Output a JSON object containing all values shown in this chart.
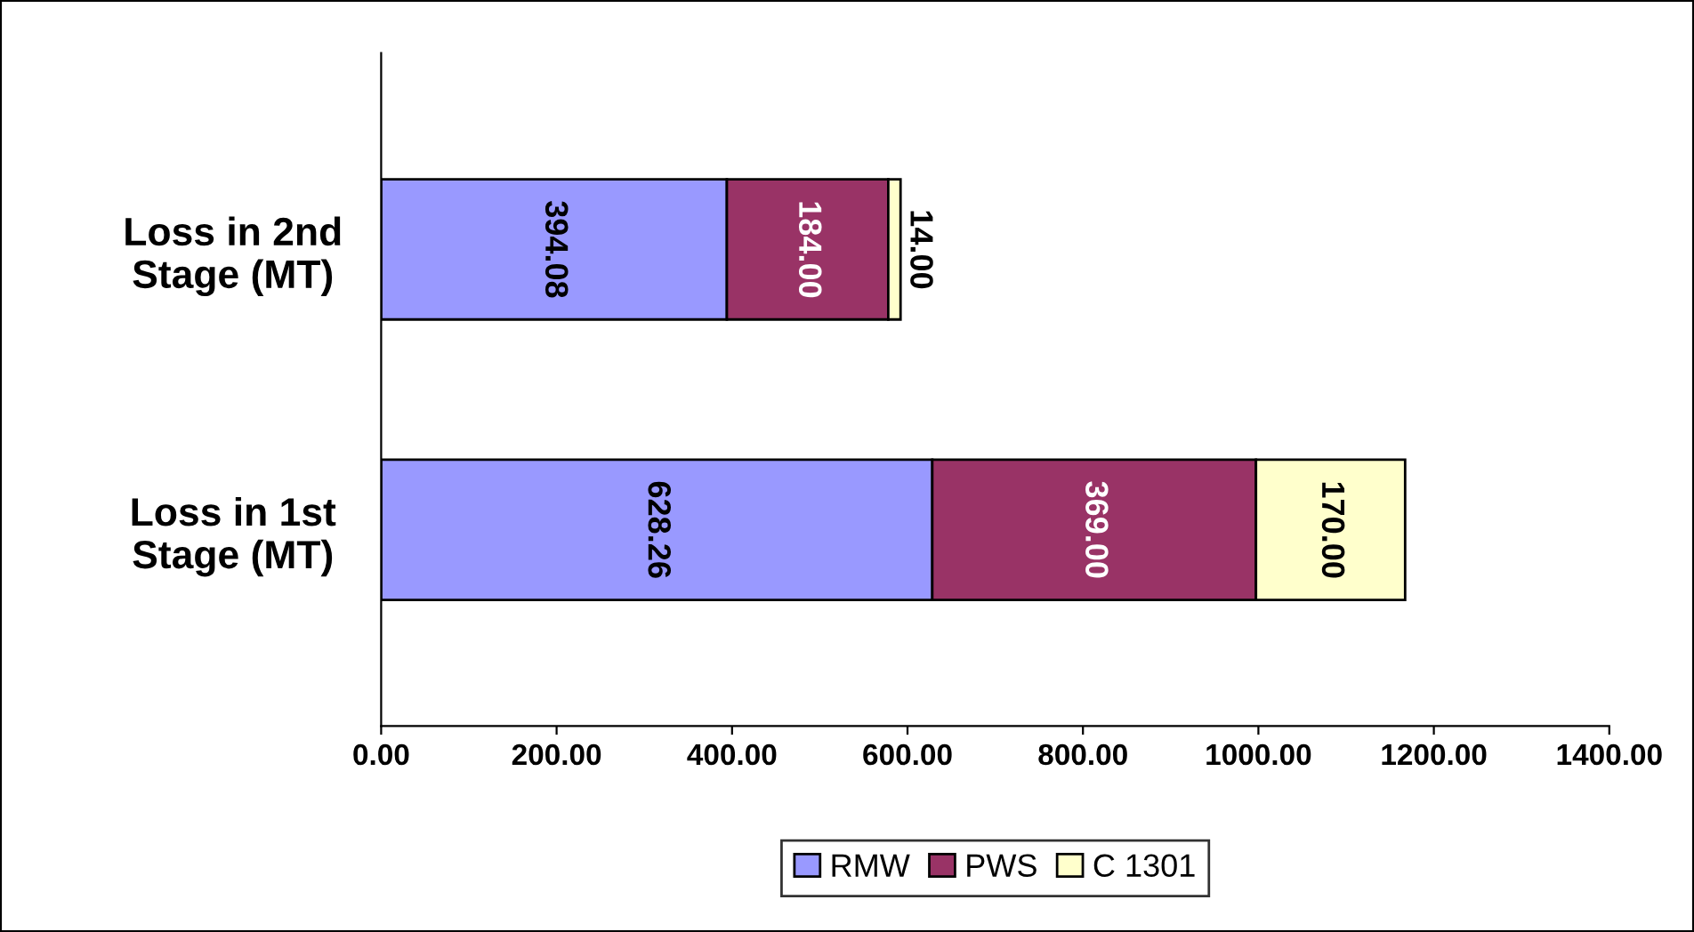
{
  "chart_data": {
    "type": "bar",
    "orientation": "horizontal",
    "stacked": true,
    "categories": [
      "Loss in 2nd Stage (MT)",
      "Loss in 1st Stage (MT)"
    ],
    "series": [
      {
        "name": "RMW",
        "color": "#9999ff",
        "values": [
          394.08,
          628.26
        ],
        "value_labels": [
          "394.08",
          "628.26"
        ]
      },
      {
        "name": "PWS",
        "color": "#993366",
        "values": [
          184.0,
          369.0
        ],
        "value_labels": [
          "184.00",
          "369.00"
        ]
      },
      {
        "name": "C 1301",
        "color": "#ffffcc",
        "values": [
          14.0,
          170.0
        ],
        "value_labels": [
          "14.00",
          "170.00"
        ]
      }
    ],
    "xlim": [
      0,
      1400
    ],
    "xticks": [
      {
        "value": 0,
        "label": "0.00"
      },
      {
        "value": 200,
        "label": "200.00"
      },
      {
        "value": 400,
        "label": "400.00"
      },
      {
        "value": 600,
        "label": "600.00"
      },
      {
        "value": 800,
        "label": "800.00"
      },
      {
        "value": 1000,
        "label": "1000.00"
      },
      {
        "value": 1200,
        "label": "1200.00"
      },
      {
        "value": 1400,
        "label": "1400.00"
      }
    ],
    "grid": false,
    "legend": "bottom"
  }
}
